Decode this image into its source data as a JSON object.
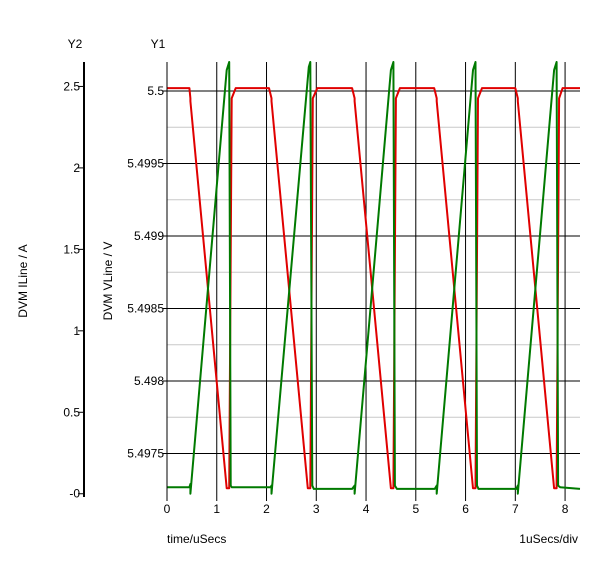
{
  "chart_data": {
    "type": "line",
    "x_footer_left": "time/uSecs",
    "x_footer_right": "1uSecs/div",
    "y1": {
      "header": "Y1",
      "label": "DVM VLine / V",
      "range": [
        5.4972,
        5.5002
      ],
      "ticks": [
        5.4975,
        5.498,
        5.4985,
        5.499,
        5.4995,
        5.5
      ],
      "tick_labels": [
        "5.4975",
        "5.498",
        "5.4985",
        "5.499",
        "5.4995",
        "5.5"
      ]
    },
    "y2": {
      "header": "Y2",
      "label": "DVM ILine / A",
      "range": [
        -0.02,
        2.65
      ],
      "ticks": [
        0,
        0.5,
        1,
        1.5,
        2,
        2.5
      ],
      "tick_labels": [
        "-0",
        "0.5",
        "1",
        "1.5",
        "2",
        "2.5"
      ]
    },
    "x": {
      "range": [
        0,
        8.3
      ],
      "ticks": [
        0,
        1,
        2,
        3,
        4,
        5,
        6,
        7,
        8
      ],
      "tick_labels": [
        "0",
        "1",
        "2",
        "3",
        "4",
        "5",
        "6",
        "7",
        "8"
      ]
    },
    "grid": true,
    "series": [
      {
        "axis": "y1",
        "color": "#e00000",
        "x": [
          0,
          0.45,
          0.47,
          0.47,
          1.2,
          1.25,
          1.3,
          1.38,
          2.05,
          2.1,
          2.1,
          2.83,
          2.88,
          2.93,
          3.02,
          3.72,
          3.77,
          3.77,
          4.5,
          4.55,
          4.6,
          4.68,
          5.37,
          5.42,
          5.42,
          6.15,
          6.2,
          6.25,
          6.33,
          7.0,
          7.05,
          7.05,
          7.78,
          7.83,
          7.88,
          7.95,
          8.3
        ],
        "y": [
          5.50002,
          5.50002,
          5.49995,
          5.49993,
          5.49726,
          5.49726,
          5.49995,
          5.50002,
          5.50002,
          5.49995,
          5.49993,
          5.49726,
          5.49726,
          5.49995,
          5.50002,
          5.50002,
          5.49995,
          5.49993,
          5.49726,
          5.49726,
          5.49995,
          5.50002,
          5.50002,
          5.49995,
          5.49993,
          5.49726,
          5.49726,
          5.49995,
          5.50002,
          5.50002,
          5.49995,
          5.49993,
          5.49726,
          5.49726,
          5.49995,
          5.50002,
          5.50002
        ]
      },
      {
        "axis": "y2",
        "color": "#007a00",
        "x": [
          0,
          0.45,
          0.47,
          0.47,
          1.2,
          1.25,
          1.28,
          1.3,
          2.08,
          2.1,
          2.1,
          2.85,
          2.88,
          2.92,
          2.95,
          3.72,
          3.77,
          3.77,
          4.5,
          4.55,
          4.58,
          4.62,
          5.38,
          5.42,
          5.42,
          6.15,
          6.2,
          6.23,
          6.26,
          7.02,
          7.05,
          7.05,
          7.78,
          7.83,
          7.86,
          7.9,
          8.3
        ],
        "y": [
          0.04,
          0.04,
          0.06,
          0.0,
          2.6,
          2.65,
          0.05,
          0.04,
          0.04,
          0.05,
          0.0,
          2.62,
          2.65,
          0.05,
          0.03,
          0.03,
          0.05,
          0.0,
          2.6,
          2.65,
          0.05,
          0.03,
          0.03,
          0.05,
          0.0,
          2.6,
          2.65,
          0.05,
          0.03,
          0.03,
          0.05,
          0.0,
          2.6,
          2.65,
          0.05,
          0.04,
          0.03
        ]
      }
    ]
  }
}
